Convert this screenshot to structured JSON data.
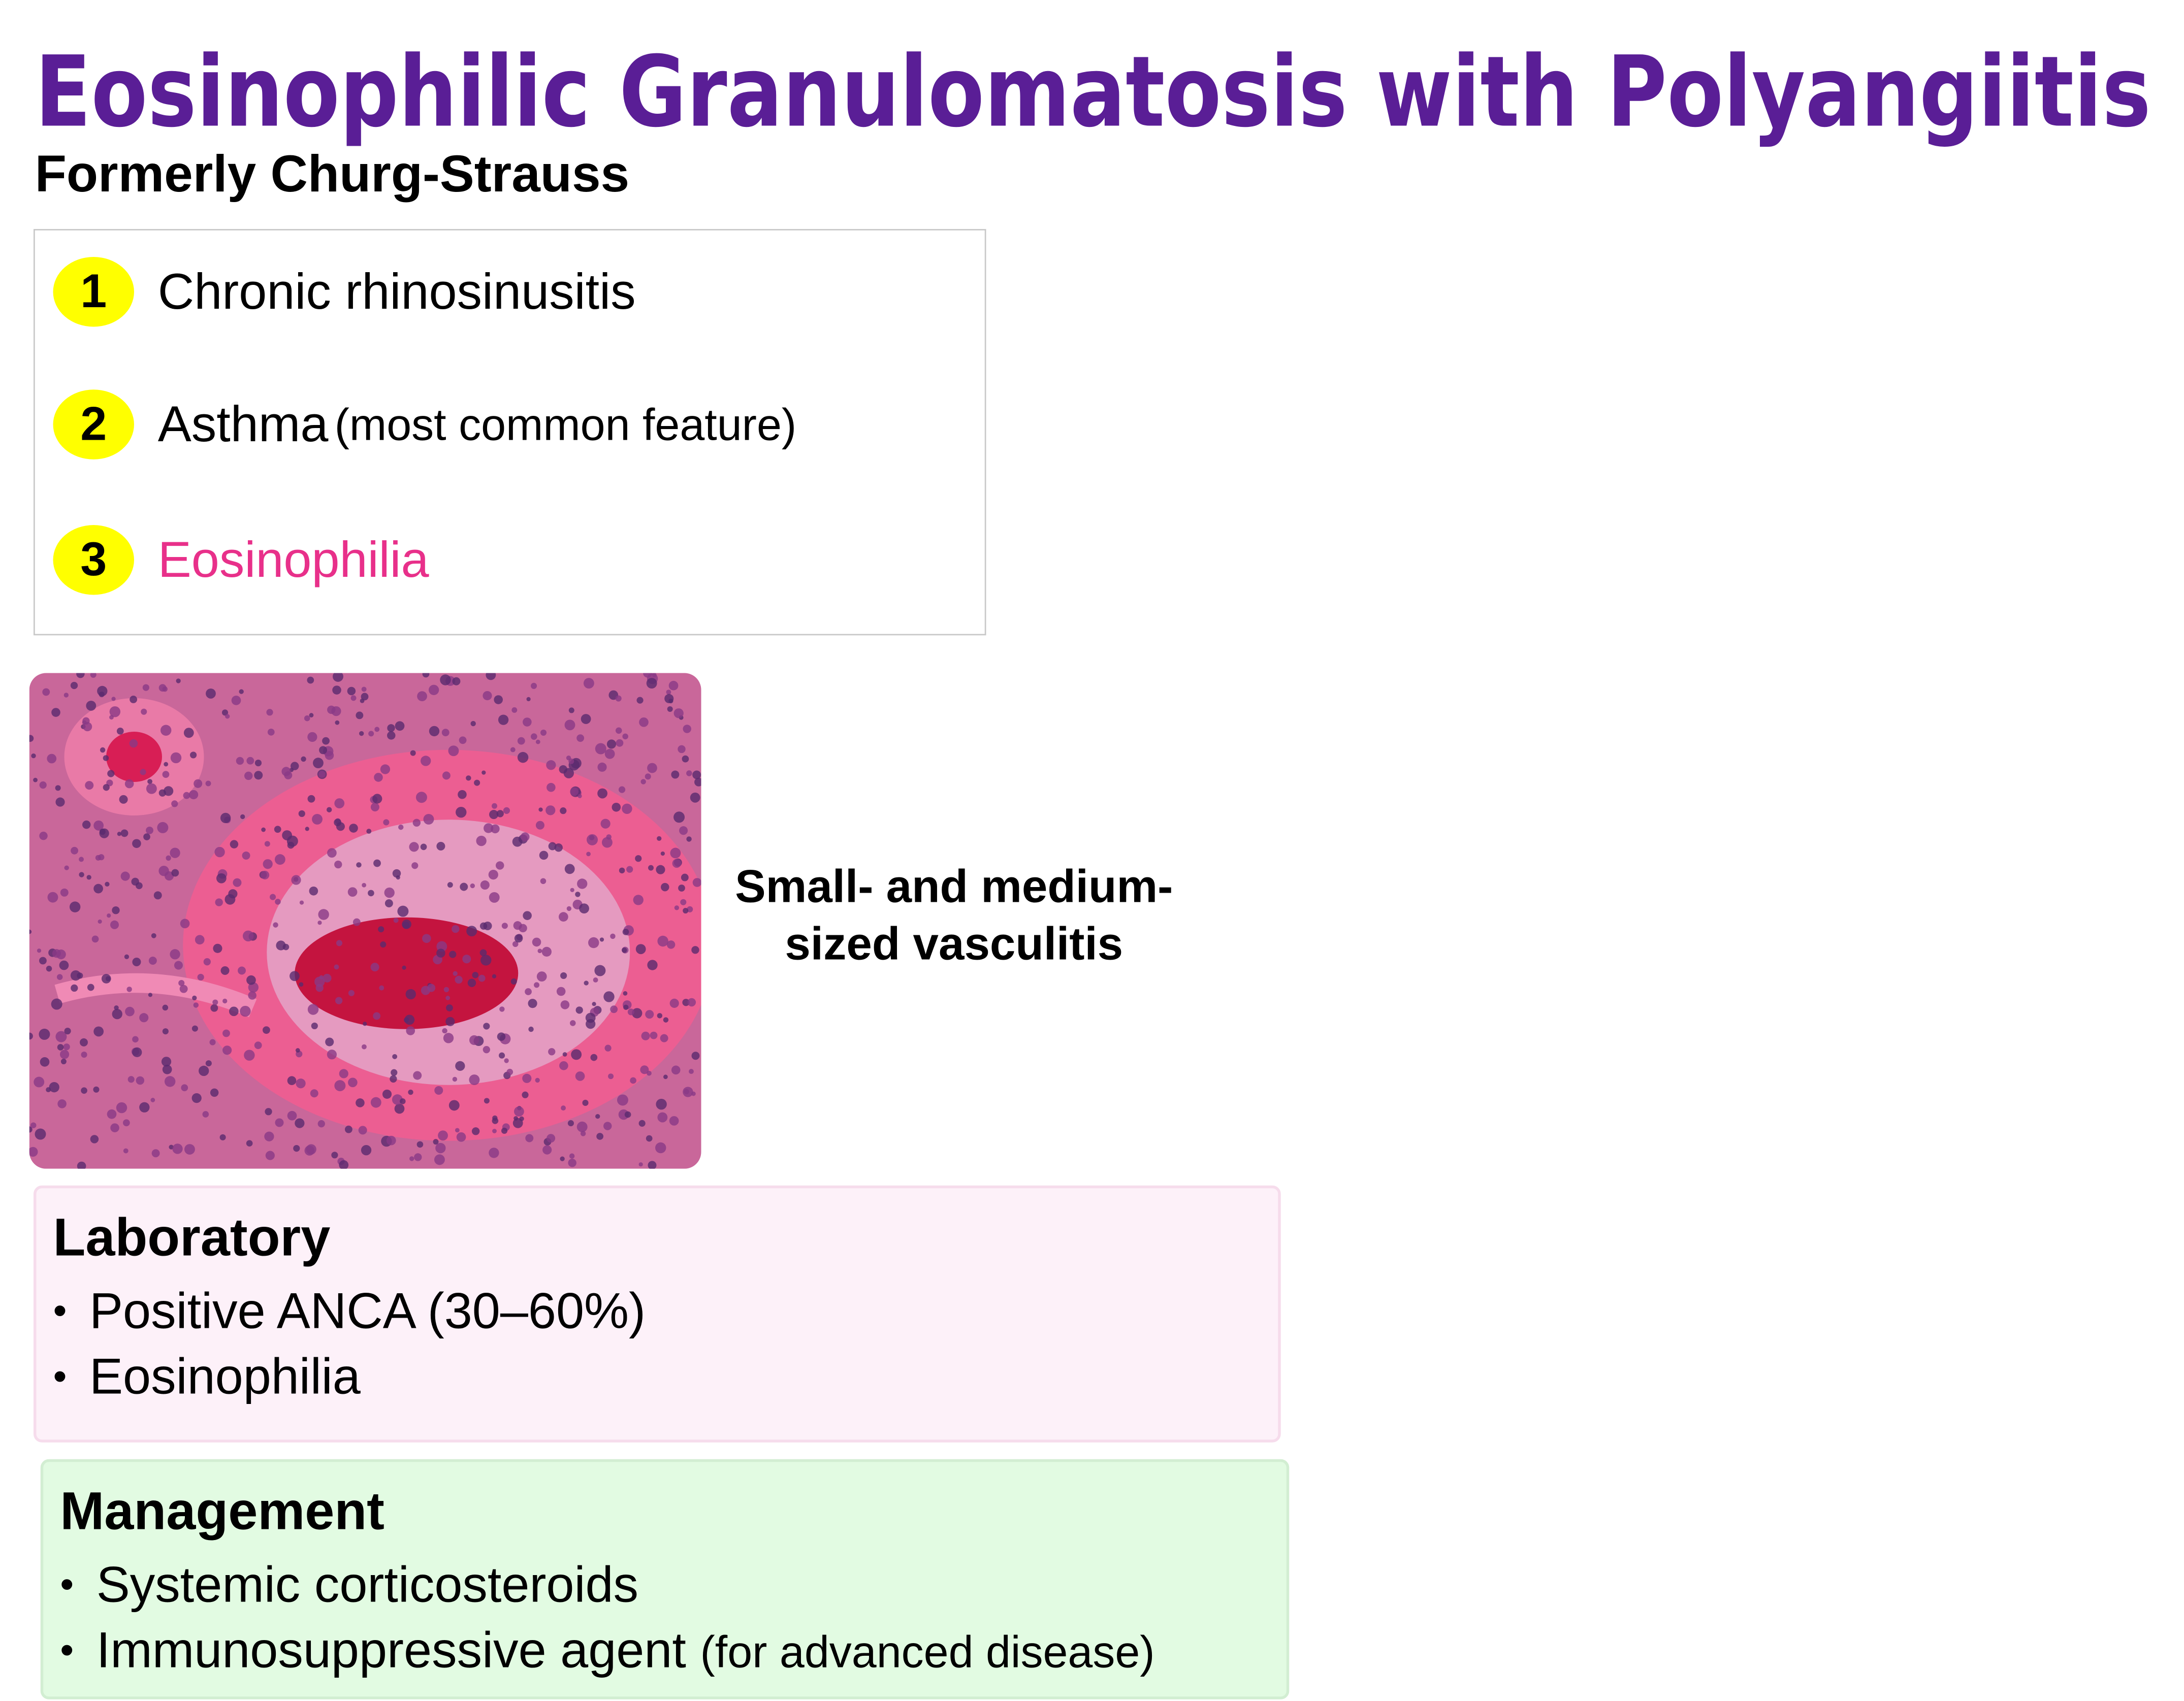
{
  "header": {
    "title": "Eosinophilic Granulomatosis with Polyangiitis",
    "subtitle": "Formerly Churg-Strauss"
  },
  "criteria": [
    {
      "number": "1",
      "text": "Chronic rhinosinusitis"
    },
    {
      "number": "2",
      "text": "Asthma",
      "note": "(most common feature)"
    },
    {
      "number": "3",
      "text": "Eosinophilia"
    }
  ],
  "image": {
    "caption": "Small- and medium-sized vasculitis"
  },
  "laboratory": {
    "title": "Laboratory",
    "items": [
      "Positive ANCA (30–60%)",
      "Eosinophilia"
    ]
  },
  "management": {
    "title": "Management",
    "items": [
      {
        "text": "Systemic corticosteroids"
      },
      {
        "text": "Immunosuppressive agent",
        "note": "(for advanced disease)"
      }
    ]
  }
}
